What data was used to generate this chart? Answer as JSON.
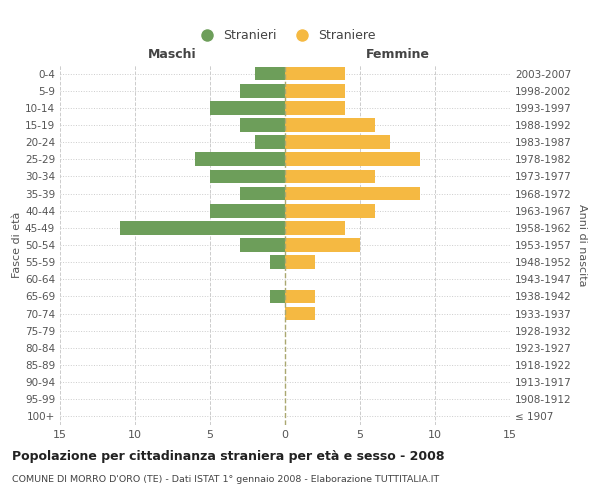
{
  "age_groups": [
    "100+",
    "95-99",
    "90-94",
    "85-89",
    "80-84",
    "75-79",
    "70-74",
    "65-69",
    "60-64",
    "55-59",
    "50-54",
    "45-49",
    "40-44",
    "35-39",
    "30-34",
    "25-29",
    "20-24",
    "15-19",
    "10-14",
    "5-9",
    "0-4"
  ],
  "birth_years": [
    "≤ 1907",
    "1908-1912",
    "1913-1917",
    "1918-1922",
    "1923-1927",
    "1928-1932",
    "1933-1937",
    "1938-1942",
    "1943-1947",
    "1948-1952",
    "1953-1957",
    "1958-1962",
    "1963-1967",
    "1968-1972",
    "1973-1977",
    "1978-1982",
    "1983-1987",
    "1988-1992",
    "1993-1997",
    "1998-2002",
    "2003-2007"
  ],
  "males": [
    0,
    0,
    0,
    0,
    0,
    0,
    0,
    1,
    0,
    1,
    3,
    11,
    5,
    3,
    5,
    6,
    2,
    3,
    5,
    3,
    2
  ],
  "females": [
    0,
    0,
    0,
    0,
    0,
    0,
    2,
    2,
    0,
    2,
    5,
    4,
    6,
    9,
    6,
    9,
    7,
    6,
    4,
    4,
    4
  ],
  "male_color": "#6d9e5a",
  "female_color": "#f5b942",
  "background_color": "#ffffff",
  "grid_color": "#cccccc",
  "bar_height": 0.8,
  "xlim": 15,
  "title": "Popolazione per cittadinanza straniera per età e sesso - 2008",
  "subtitle": "COMUNE DI MORRO D'ORO (TE) - Dati ISTAT 1° gennaio 2008 - Elaborazione TUTTITALIA.IT",
  "xlabel_left": "Maschi",
  "xlabel_right": "Femmine",
  "ylabel_left": "Fasce di età",
  "ylabel_right": "Anni di nascita",
  "legend_stranieri": "Stranieri",
  "legend_straniere": "Straniere"
}
